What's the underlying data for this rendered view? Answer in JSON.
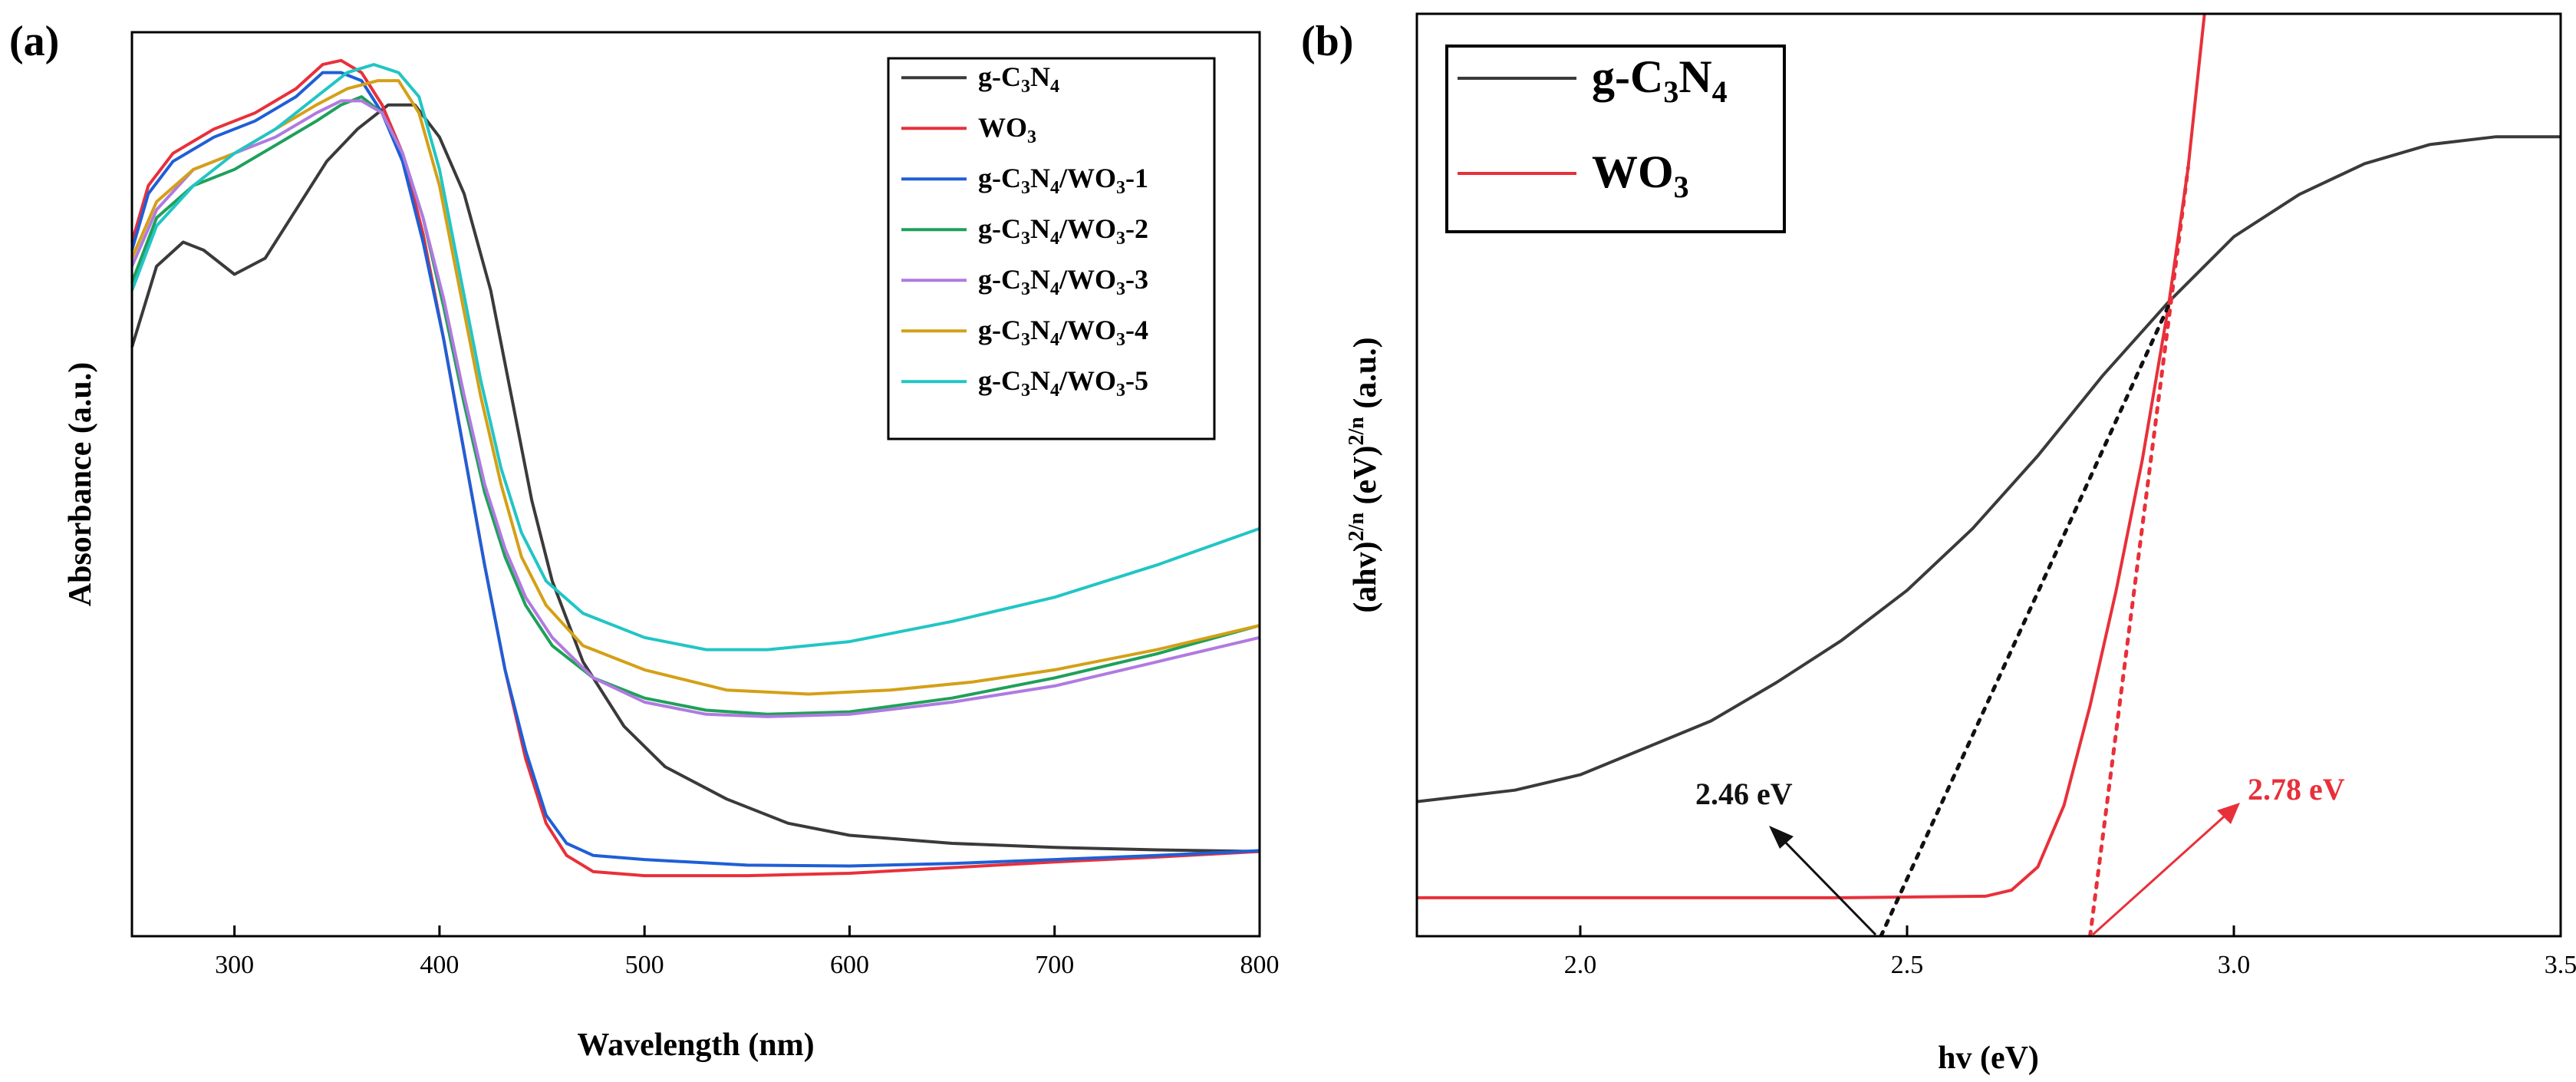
{
  "chart_data": [
    {
      "panel_label": "(a)",
      "type": "line",
      "xlabel": "Wavelength (nm)",
      "ylabel": "Absorbance (a.u.)",
      "xlim": [
        250,
        800
      ],
      "ylim": [
        0,
        1.12
      ],
      "xticks": [
        300,
        400,
        500,
        600,
        700,
        800
      ],
      "legend_position": "top-right",
      "series": [
        {
          "name": "g-C3N4",
          "legend": {
            "pre": "g-C",
            "s1": "3",
            "mid": "N",
            "s2": "4",
            "post": ""
          },
          "color": "#3a3a3a",
          "points": [
            [
              250,
              0.73
            ],
            [
              262,
              0.83
            ],
            [
              275,
              0.86
            ],
            [
              285,
              0.85
            ],
            [
              300,
              0.82
            ],
            [
              315,
              0.84
            ],
            [
              330,
              0.9
            ],
            [
              345,
              0.96
            ],
            [
              360,
              1.0
            ],
            [
              375,
              1.03
            ],
            [
              388,
              1.03
            ],
            [
              400,
              0.99
            ],
            [
              412,
              0.92
            ],
            [
              425,
              0.8
            ],
            [
              435,
              0.67
            ],
            [
              445,
              0.54
            ],
            [
              455,
              0.44
            ],
            [
              470,
              0.34
            ],
            [
              490,
              0.26
            ],
            [
              510,
              0.21
            ],
            [
              540,
              0.17
            ],
            [
              570,
              0.14
            ],
            [
              600,
              0.125
            ],
            [
              650,
              0.115
            ],
            [
              700,
              0.11
            ],
            [
              750,
              0.107
            ],
            [
              800,
              0.105
            ]
          ]
        },
        {
          "name": "WO3",
          "legend": {
            "pre": "WO",
            "s1": "3",
            "mid": "",
            "s2": "",
            "post": ""
          },
          "color": "#e8303a",
          "points": [
            [
              250,
              0.86
            ],
            [
              258,
              0.93
            ],
            [
              270,
              0.97
            ],
            [
              290,
              1.0
            ],
            [
              310,
              1.02
            ],
            [
              330,
              1.05
            ],
            [
              343,
              1.08
            ],
            [
              352,
              1.085
            ],
            [
              362,
              1.07
            ],
            [
              372,
              1.03
            ],
            [
              382,
              0.97
            ],
            [
              392,
              0.87
            ],
            [
              402,
              0.74
            ],
            [
              412,
              0.6
            ],
            [
              422,
              0.46
            ],
            [
              432,
              0.33
            ],
            [
              442,
              0.22
            ],
            [
              452,
              0.14
            ],
            [
              462,
              0.1
            ],
            [
              475,
              0.08
            ],
            [
              500,
              0.075
            ],
            [
              550,
              0.075
            ],
            [
              600,
              0.078
            ],
            [
              650,
              0.085
            ],
            [
              700,
              0.092
            ],
            [
              750,
              0.098
            ],
            [
              800,
              0.105
            ]
          ]
        },
        {
          "name": "g-C3N4/WO3-1",
          "legend": {
            "pre": "g-C",
            "s1": "3",
            "mid": "N",
            "s2": "4",
            "post": "/WO3-1"
          },
          "color": "#1f5fd6",
          "points": [
            [
              250,
              0.85
            ],
            [
              258,
              0.92
            ],
            [
              270,
              0.96
            ],
            [
              290,
              0.99
            ],
            [
              310,
              1.01
            ],
            [
              330,
              1.04
            ],
            [
              343,
              1.07
            ],
            [
              352,
              1.07
            ],
            [
              362,
              1.06
            ],
            [
              372,
              1.02
            ],
            [
              382,
              0.96
            ],
            [
              392,
              0.86
            ],
            [
              402,
              0.74
            ],
            [
              412,
              0.6
            ],
            [
              422,
              0.46
            ],
            [
              432,
              0.33
            ],
            [
              442,
              0.23
            ],
            [
              452,
              0.15
            ],
            [
              462,
              0.115
            ],
            [
              475,
              0.1
            ],
            [
              500,
              0.095
            ],
            [
              550,
              0.088
            ],
            [
              600,
              0.087
            ],
            [
              650,
              0.09
            ],
            [
              700,
              0.095
            ],
            [
              750,
              0.1
            ],
            [
              800,
              0.106
            ]
          ]
        },
        {
          "name": "g-C3N4/WO3-2",
          "legend": {
            "pre": "g-C",
            "s1": "3",
            "mid": "N",
            "s2": "4",
            "post": "/WO3-2"
          },
          "color": "#1fa05a",
          "points": [
            [
              250,
              0.81
            ],
            [
              262,
              0.89
            ],
            [
              280,
              0.93
            ],
            [
              300,
              0.95
            ],
            [
              320,
              0.98
            ],
            [
              340,
              1.01
            ],
            [
              352,
              1.03
            ],
            [
              362,
              1.04
            ],
            [
              372,
              1.02
            ],
            [
              382,
              0.97
            ],
            [
              392,
              0.89
            ],
            [
              402,
              0.78
            ],
            [
              412,
              0.66
            ],
            [
              422,
              0.55
            ],
            [
              432,
              0.47
            ],
            [
              442,
              0.41
            ],
            [
              455,
              0.36
            ],
            [
              475,
              0.32
            ],
            [
              500,
              0.295
            ],
            [
              530,
              0.28
            ],
            [
              560,
              0.275
            ],
            [
              600,
              0.278
            ],
            [
              650,
              0.295
            ],
            [
              700,
              0.32
            ],
            [
              750,
              0.35
            ],
            [
              800,
              0.385
            ]
          ]
        },
        {
          "name": "g-C3N4/WO3-3",
          "legend": {
            "pre": "g-C",
            "s1": "3",
            "mid": "N",
            "s2": "4",
            "post": "/WO3-3"
          },
          "color": "#b07ae0",
          "points": [
            [
              250,
              0.83
            ],
            [
              262,
              0.9
            ],
            [
              280,
              0.95
            ],
            [
              300,
              0.97
            ],
            [
              320,
              0.99
            ],
            [
              340,
              1.02
            ],
            [
              352,
              1.035
            ],
            [
              362,
              1.035
            ],
            [
              372,
              1.02
            ],
            [
              382,
              0.97
            ],
            [
              392,
              0.89
            ],
            [
              402,
              0.79
            ],
            [
              412,
              0.67
            ],
            [
              422,
              0.56
            ],
            [
              432,
              0.48
            ],
            [
              442,
              0.42
            ],
            [
              455,
              0.37
            ],
            [
              475,
              0.32
            ],
            [
              500,
              0.29
            ],
            [
              530,
              0.275
            ],
            [
              560,
              0.272
            ],
            [
              600,
              0.275
            ],
            [
              650,
              0.29
            ],
            [
              700,
              0.31
            ],
            [
              750,
              0.34
            ],
            [
              800,
              0.37
            ]
          ]
        },
        {
          "name": "g-C3N4/WO3-4",
          "legend": {
            "pre": "g-C",
            "s1": "3",
            "mid": "N",
            "s2": "4",
            "post": "/WO3-4"
          },
          "color": "#d4a017",
          "points": [
            [
              250,
              0.84
            ],
            [
              262,
              0.91
            ],
            [
              280,
              0.95
            ],
            [
              300,
              0.97
            ],
            [
              320,
              1.0
            ],
            [
              340,
              1.03
            ],
            [
              355,
              1.05
            ],
            [
              370,
              1.06
            ],
            [
              380,
              1.06
            ],
            [
              390,
              1.02
            ],
            [
              400,
              0.93
            ],
            [
              410,
              0.8
            ],
            [
              420,
              0.67
            ],
            [
              430,
              0.56
            ],
            [
              440,
              0.47
            ],
            [
              452,
              0.41
            ],
            [
              470,
              0.36
            ],
            [
              500,
              0.33
            ],
            [
              540,
              0.305
            ],
            [
              580,
              0.3
            ],
            [
              620,
              0.305
            ],
            [
              660,
              0.315
            ],
            [
              700,
              0.33
            ],
            [
              750,
              0.355
            ],
            [
              800,
              0.385
            ]
          ]
        },
        {
          "name": "g-C3N4/WO3-5",
          "legend": {
            "pre": "g-C",
            "s1": "3",
            "mid": "N",
            "s2": "4",
            "post": "/WO3-5"
          },
          "color": "#22c5c5",
          "points": [
            [
              250,
              0.8
            ],
            [
              262,
              0.88
            ],
            [
              280,
              0.93
            ],
            [
              300,
              0.97
            ],
            [
              320,
              1.0
            ],
            [
              340,
              1.04
            ],
            [
              355,
              1.07
            ],
            [
              368,
              1.08
            ],
            [
              380,
              1.07
            ],
            [
              390,
              1.04
            ],
            [
              400,
              0.95
            ],
            [
              410,
              0.82
            ],
            [
              420,
              0.69
            ],
            [
              430,
              0.58
            ],
            [
              440,
              0.5
            ],
            [
              452,
              0.44
            ],
            [
              470,
              0.4
            ],
            [
              500,
              0.37
            ],
            [
              530,
              0.355
            ],
            [
              560,
              0.355
            ],
            [
              600,
              0.365
            ],
            [
              650,
              0.39
            ],
            [
              700,
              0.42
            ],
            [
              750,
              0.46
            ],
            [
              800,
              0.505
            ]
          ]
        }
      ]
    },
    {
      "panel_label": "(b)",
      "type": "line",
      "xlabel": "hv (eV)",
      "ylabel": "(ahv)2/n (eV)2/n (a.u.)",
      "ylabel_parts": {
        "a": "(ahv)",
        "s1": "2/n",
        "b": " (eV)",
        "s2": "2/n",
        "c": " (a.u.)"
      },
      "xlim": [
        1.75,
        3.5
      ],
      "ylim": [
        0,
        1.2
      ],
      "xticks": [
        2.0,
        2.5,
        3.0,
        3.5
      ],
      "xtick_labels": [
        "2.0",
        "2.5",
        "3.0",
        "3.5"
      ],
      "legend_position": "top-left",
      "series": [
        {
          "name": "g-C3N4",
          "legend": {
            "pre": "g-C",
            "s1": "3",
            "mid": "N",
            "s2": "4",
            "post": ""
          },
          "color": "#3a3a3a",
          "points": [
            [
              1.75,
              0.175
            ],
            [
              1.9,
              0.19
            ],
            [
              2.0,
              0.21
            ],
            [
              2.1,
              0.245
            ],
            [
              2.2,
              0.28
            ],
            [
              2.3,
              0.33
            ],
            [
              2.4,
              0.385
            ],
            [
              2.5,
              0.45
            ],
            [
              2.6,
              0.53
            ],
            [
              2.7,
              0.625
            ],
            [
              2.8,
              0.73
            ],
            [
              2.9,
              0.825
            ],
            [
              3.0,
              0.91
            ],
            [
              3.1,
              0.965
            ],
            [
              3.2,
              1.005
            ],
            [
              3.3,
              1.03
            ],
            [
              3.4,
              1.04
            ],
            [
              3.5,
              1.04
            ]
          ]
        },
        {
          "name": "WO3",
          "legend": {
            "pre": "WO",
            "s1": "3",
            "mid": "",
            "s2": "",
            "post": ""
          },
          "color": "#e8303a",
          "points": [
            [
              1.75,
              0.05
            ],
            [
              2.4,
              0.05
            ],
            [
              2.62,
              0.052
            ],
            [
              2.66,
              0.06
            ],
            [
              2.7,
              0.09
            ],
            [
              2.74,
              0.17
            ],
            [
              2.78,
              0.3
            ],
            [
              2.82,
              0.45
            ],
            [
              2.86,
              0.62
            ],
            [
              2.9,
              0.82
            ],
            [
              2.93,
              1.0
            ],
            [
              2.955,
              1.2
            ]
          ]
        }
      ],
      "tangents": [
        {
          "name": "g-C3N4 tangent",
          "color": "#111111",
          "from": [
            2.46,
            0
          ],
          "to": [
            2.9,
            0.82
          ]
        },
        {
          "name": "WO3 tangent",
          "color": "#e8303a",
          "from": [
            2.78,
            0
          ],
          "to": [
            2.93,
            1.0
          ]
        }
      ],
      "annotations": [
        {
          "text": "2.46 eV",
          "color": "#111111",
          "x": 2.46
        },
        {
          "text": "2.78 eV",
          "color": "#e8303a",
          "x": 2.78
        }
      ]
    }
  ]
}
